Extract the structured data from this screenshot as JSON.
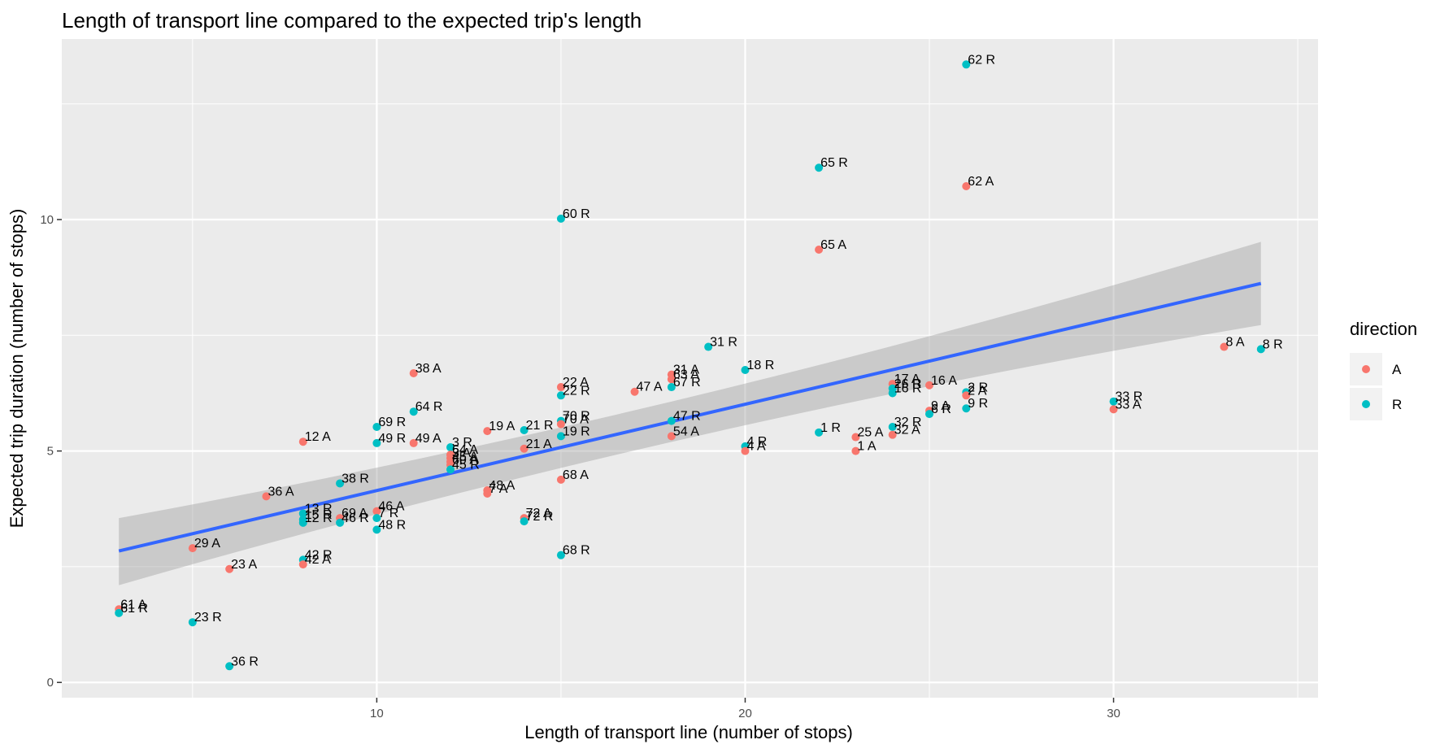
{
  "chart_data": {
    "type": "scatter",
    "title": "Length of transport line compared to the expected trip's length",
    "xlabel": "Length of transport line (number of stops)",
    "ylabel": "Expected trip duration (number of stops)",
    "xlim": [
      1.45,
      35.55
    ],
    "ylim": [
      -0.33,
      13.9
    ],
    "x_ticks": [
      10,
      20,
      30
    ],
    "y_ticks": [
      0,
      5,
      10
    ],
    "x_tick_labels": [
      "10",
      "20",
      "30"
    ],
    "y_tick_labels": [
      "0",
      "5",
      "10"
    ],
    "grid": true,
    "legend": {
      "title": "direction",
      "position": "right",
      "entries": [
        "A",
        "R"
      ]
    },
    "colors": {
      "A": "#F8766D",
      "R": "#00BFC4",
      "trend": "#3366FF",
      "ribbon": "#999999",
      "panel": "#EBEBEB",
      "grid": "#FFFFFF"
    },
    "trend": {
      "method": "lm",
      "x": [
        3,
        34
      ],
      "y": [
        2.84,
        8.62
      ],
      "ci_lower": [
        2.1,
        7.72
      ],
      "ci_upper": [
        3.55,
        9.52
      ]
    },
    "points": [
      {
        "label": "62 R",
        "x": 26,
        "y": 13.35,
        "dir": "R"
      },
      {
        "label": "65 R",
        "x": 22,
        "y": 11.12,
        "dir": "R"
      },
      {
        "label": "62 A",
        "x": 26,
        "y": 10.72,
        "dir": "A"
      },
      {
        "label": "60 R",
        "x": 15,
        "y": 10.02,
        "dir": "R"
      },
      {
        "label": "65 A",
        "x": 22,
        "y": 9.35,
        "dir": "A"
      },
      {
        "label": "31 R",
        "x": 19,
        "y": 7.25,
        "dir": "R"
      },
      {
        "label": "8 A",
        "x": 33,
        "y": 7.25,
        "dir": "A"
      },
      {
        "label": "8 R",
        "x": 34,
        "y": 7.2,
        "dir": "R"
      },
      {
        "label": "38 A",
        "x": 11,
        "y": 6.68,
        "dir": "A"
      },
      {
        "label": "18 R",
        "x": 20,
        "y": 6.75,
        "dir": "R"
      },
      {
        "label": "31 A",
        "x": 18,
        "y": 6.65,
        "dir": "A"
      },
      {
        "label": "63 A",
        "x": 18,
        "y": 6.55,
        "dir": "A"
      },
      {
        "label": "67 R",
        "x": 18,
        "y": 6.38,
        "dir": "R"
      },
      {
        "label": "22 A",
        "x": 15,
        "y": 6.38,
        "dir": "A"
      },
      {
        "label": "22 R",
        "x": 15,
        "y": 6.2,
        "dir": "R"
      },
      {
        "label": "47 A",
        "x": 17,
        "y": 6.28,
        "dir": "A"
      },
      {
        "label": "17 A",
        "x": 24,
        "y": 6.45,
        "dir": "A"
      },
      {
        "label": "16 A",
        "x": 25,
        "y": 6.42,
        "dir": "A"
      },
      {
        "label": "26 R",
        "x": 24,
        "y": 6.35,
        "dir": "R"
      },
      {
        "label": "16 R",
        "x": 24,
        "y": 6.25,
        "dir": "R"
      },
      {
        "label": "2 R",
        "x": 26,
        "y": 6.27,
        "dir": "R"
      },
      {
        "label": "2 A",
        "x": 26,
        "y": 6.2,
        "dir": "A"
      },
      {
        "label": "33 R",
        "x": 30,
        "y": 6.07,
        "dir": "R"
      },
      {
        "label": "33 A",
        "x": 30,
        "y": 5.9,
        "dir": "A"
      },
      {
        "label": "9 R",
        "x": 26,
        "y": 5.92,
        "dir": "R"
      },
      {
        "label": "9 A",
        "x": 25,
        "y": 5.87,
        "dir": "A"
      },
      {
        "label": "6 R",
        "x": 25,
        "y": 5.8,
        "dir": "R"
      },
      {
        "label": "64 R",
        "x": 11,
        "y": 5.85,
        "dir": "R"
      },
      {
        "label": "70 R",
        "x": 15,
        "y": 5.65,
        "dir": "R"
      },
      {
        "label": "70 A",
        "x": 15,
        "y": 5.58,
        "dir": "A"
      },
      {
        "label": "47 R",
        "x": 18,
        "y": 5.65,
        "dir": "R"
      },
      {
        "label": "69 R",
        "x": 10,
        "y": 5.52,
        "dir": "R"
      },
      {
        "label": "19 A",
        "x": 13,
        "y": 5.43,
        "dir": "A"
      },
      {
        "label": "21 R",
        "x": 14,
        "y": 5.45,
        "dir": "R"
      },
      {
        "label": "19 R",
        "x": 15,
        "y": 5.32,
        "dir": "R"
      },
      {
        "label": "54 A",
        "x": 18,
        "y": 5.32,
        "dir": "A"
      },
      {
        "label": "1 R",
        "x": 22,
        "y": 5.4,
        "dir": "R"
      },
      {
        "label": "25 A",
        "x": 23,
        "y": 5.3,
        "dir": "A"
      },
      {
        "label": "32 R",
        "x": 24,
        "y": 5.52,
        "dir": "R"
      },
      {
        "label": "32 A",
        "x": 24,
        "y": 5.35,
        "dir": "A"
      },
      {
        "label": "12 A",
        "x": 8,
        "y": 5.2,
        "dir": "A"
      },
      {
        "label": "49 R",
        "x": 10,
        "y": 5.17,
        "dir": "R"
      },
      {
        "label": "49 A",
        "x": 11,
        "y": 5.17,
        "dir": "A"
      },
      {
        "label": "21 A",
        "x": 14,
        "y": 5.05,
        "dir": "A"
      },
      {
        "label": "4 R",
        "x": 20,
        "y": 5.1,
        "dir": "R"
      },
      {
        "label": "4 A",
        "x": 20,
        "y": 5.0,
        "dir": "A"
      },
      {
        "label": "1 A",
        "x": 23,
        "y": 5.0,
        "dir": "A"
      },
      {
        "label": "3 R",
        "x": 12,
        "y": 5.08,
        "dir": "R"
      },
      {
        "label": "64 A",
        "x": 12,
        "y": 4.92,
        "dir": "A"
      },
      {
        "label": "3 A",
        "x": 12,
        "y": 4.85,
        "dir": "A"
      },
      {
        "label": "45 A",
        "x": 12,
        "y": 4.77,
        "dir": "A"
      },
      {
        "label": "60 A",
        "x": 12,
        "y": 4.7,
        "dir": "A"
      },
      {
        "label": "45 R",
        "x": 12,
        "y": 4.6,
        "dir": "R"
      },
      {
        "label": "38 R",
        "x": 9,
        "y": 4.3,
        "dir": "R"
      },
      {
        "label": "68 A",
        "x": 15,
        "y": 4.38,
        "dir": "A"
      },
      {
        "label": "48 A",
        "x": 13,
        "y": 4.15,
        "dir": "A"
      },
      {
        "label": "7 A",
        "x": 13,
        "y": 4.08,
        "dir": "A"
      },
      {
        "label": "36 A",
        "x": 7,
        "y": 4.02,
        "dir": "A"
      },
      {
        "label": "13 R",
        "x": 8,
        "y": 3.65,
        "dir": "R"
      },
      {
        "label": "46 A",
        "x": 10,
        "y": 3.7,
        "dir": "A"
      },
      {
        "label": "69 A",
        "x": 9,
        "y": 3.55,
        "dir": "A"
      },
      {
        "label": "7 R",
        "x": 10,
        "y": 3.55,
        "dir": "R"
      },
      {
        "label": "15 R",
        "x": 8,
        "y": 3.52,
        "dir": "R"
      },
      {
        "label": "12 R",
        "x": 8,
        "y": 3.45,
        "dir": "R"
      },
      {
        "label": "46 R",
        "x": 9,
        "y": 3.45,
        "dir": "R"
      },
      {
        "label": "48 R",
        "x": 10,
        "y": 3.3,
        "dir": "R"
      },
      {
        "label": "72 A",
        "x": 14,
        "y": 3.55,
        "dir": "A"
      },
      {
        "label": "72 R",
        "x": 14,
        "y": 3.48,
        "dir": "R"
      },
      {
        "label": "29 A",
        "x": 5,
        "y": 2.9,
        "dir": "A"
      },
      {
        "label": "68 R",
        "x": 15,
        "y": 2.75,
        "dir": "R"
      },
      {
        "label": "42 R",
        "x": 8,
        "y": 2.65,
        "dir": "R"
      },
      {
        "label": "42 A",
        "x": 8,
        "y": 2.55,
        "dir": "A"
      },
      {
        "label": "23 A",
        "x": 6,
        "y": 2.45,
        "dir": "A"
      },
      {
        "label": "61 A",
        "x": 3,
        "y": 1.58,
        "dir": "A"
      },
      {
        "label": "61 R",
        "x": 3,
        "y": 1.5,
        "dir": "R"
      },
      {
        "label": "23 R",
        "x": 5,
        "y": 1.3,
        "dir": "R"
      },
      {
        "label": "36 R",
        "x": 6,
        "y": 0.35,
        "dir": "R"
      }
    ]
  }
}
